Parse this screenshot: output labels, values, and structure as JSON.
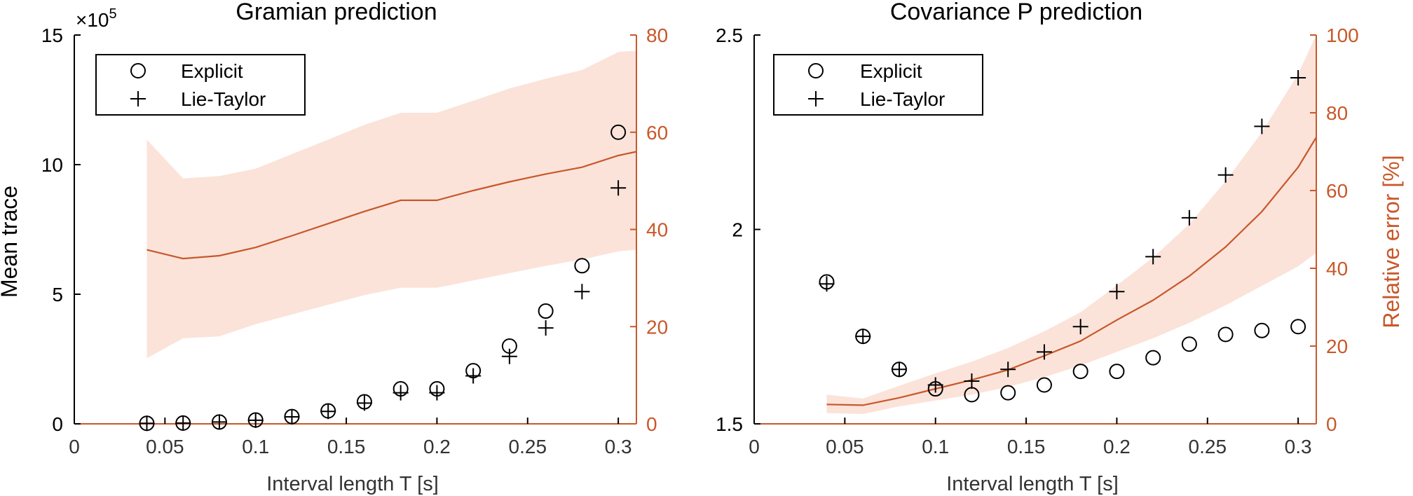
{
  "colors": {
    "left_axis": "#000000",
    "right_axis": "#c8582a",
    "band_fill": "#fbe3da",
    "markers": "#000000"
  },
  "chart_data": [
    {
      "type": "scatter",
      "title": "Gramian prediction",
      "xlabel": "Interval length T [s]",
      "ylabel": "Mean trace",
      "ylabel_right": "",
      "y_exponent": "×10",
      "y_exponent_power": "5",
      "xlim": [
        0,
        0.31
      ],
      "ylim": [
        0,
        15
      ],
      "ylim_right": [
        0,
        80
      ],
      "xticks": [
        0,
        0.05,
        0.1,
        0.15,
        0.2,
        0.25,
        0.3
      ],
      "xtick_labels": [
        "0",
        "0.05",
        "0.1",
        "0.15",
        "0.2",
        "0.25",
        "0.3"
      ],
      "yticks": [
        0,
        5,
        10,
        15
      ],
      "ytick_labels": [
        "0",
        "5",
        "10",
        "15"
      ],
      "yticks_right": [
        0,
        20,
        40,
        60,
        80
      ],
      "ytick_right_labels": [
        "0",
        "20",
        "40",
        "60",
        "80"
      ],
      "legend": {
        "placement": "top-left",
        "entries": [
          "Explicit",
          "Lie-Taylor"
        ]
      },
      "x": [
        0.04,
        0.06,
        0.08,
        0.1,
        0.12,
        0.14,
        0.16,
        0.18,
        0.2,
        0.22,
        0.24,
        0.26,
        0.28,
        0.3
      ],
      "series": [
        {
          "name": "Explicit",
          "marker": "circle",
          "axis": "left",
          "values": [
            0.02,
            0.03,
            0.07,
            0.15,
            0.28,
            0.5,
            0.85,
            1.35,
            1.35,
            2.05,
            3.0,
            4.35,
            6.1,
            11.25
          ]
        },
        {
          "name": "Lie-Taylor",
          "marker": "plus",
          "axis": "left",
          "values": [
            0.02,
            0.03,
            0.07,
            0.14,
            0.27,
            0.48,
            0.8,
            1.2,
            1.2,
            1.85,
            2.6,
            3.7,
            5.1,
            9.1
          ]
        }
      ],
      "relative_error": {
        "axis": "right",
        "x": [
          0.04,
          0.06,
          0.08,
          0.1,
          0.12,
          0.14,
          0.16,
          0.18,
          0.2,
          0.22,
          0.24,
          0.26,
          0.28,
          0.3,
          0.31
        ],
        "mean": [
          35.8,
          34.0,
          34.6,
          36.3,
          38.7,
          41.2,
          43.7,
          46.0,
          46.0,
          48.0,
          49.8,
          51.4,
          52.8,
          55.2,
          56.0
        ],
        "upper": [
          58.5,
          50.5,
          51.0,
          52.5,
          55.5,
          58.5,
          61.5,
          64.0,
          64.0,
          66.5,
          69.0,
          71.0,
          72.8,
          76.5,
          76.8
        ],
        "lower": [
          13.5,
          17.6,
          18.0,
          20.5,
          22.5,
          24.5,
          26.5,
          28.0,
          28.0,
          29.5,
          31.0,
          32.5,
          33.8,
          35.5,
          35.8
        ]
      }
    },
    {
      "type": "scatter",
      "title": "Covariance P prediction",
      "xlabel": "Interval length T [s]",
      "ylabel": "",
      "ylabel_right": "Relative error [%]",
      "y_exponent": "",
      "y_exponent_power": "",
      "xlim": [
        0,
        0.31
      ],
      "ylim": [
        1.5,
        2.5
      ],
      "ylim_right": [
        0,
        100
      ],
      "xticks": [
        0,
        0.05,
        0.1,
        0.15,
        0.2,
        0.25,
        0.3
      ],
      "xtick_labels": [
        "0",
        "0.05",
        "0.1",
        "0.15",
        "0.2",
        "0.25",
        "0.3"
      ],
      "yticks": [
        1.5,
        2,
        2.5
      ],
      "ytick_labels": [
        "1.5",
        "2",
        "2.5"
      ],
      "yticks_right": [
        0,
        20,
        40,
        60,
        80,
        100
      ],
      "ytick_right_labels": [
        "0",
        "20",
        "40",
        "60",
        "80",
        "100"
      ],
      "legend": {
        "placement": "top-left",
        "entries": [
          "Explicit",
          "Lie-Taylor"
        ]
      },
      "x": [
        0.04,
        0.06,
        0.08,
        0.1,
        0.12,
        0.14,
        0.16,
        0.18,
        0.2,
        0.22,
        0.24,
        0.26,
        0.28,
        0.3
      ],
      "series": [
        {
          "name": "Explicit",
          "marker": "circle",
          "axis": "left",
          "values": [
            1.865,
            1.725,
            1.64,
            1.59,
            1.575,
            1.58,
            1.6,
            1.635,
            1.635,
            1.67,
            1.705,
            1.73,
            1.74,
            1.75
          ]
        },
        {
          "name": "Lie-Taylor",
          "marker": "plus",
          "axis": "left",
          "values": [
            1.86,
            1.725,
            1.64,
            1.6,
            1.61,
            1.64,
            1.685,
            1.75,
            1.84,
            1.93,
            2.03,
            2.14,
            2.265,
            2.39
          ]
        }
      ],
      "relative_error": {
        "axis": "right",
        "x": [
          0.04,
          0.06,
          0.08,
          0.1,
          0.12,
          0.14,
          0.16,
          0.18,
          0.2,
          0.22,
          0.24,
          0.26,
          0.28,
          0.3,
          0.31
        ],
        "mean": [
          5.0,
          4.8,
          6.7,
          9.0,
          11.3,
          13.9,
          17.5,
          21.3,
          26.7,
          31.8,
          38.0,
          45.5,
          54.6,
          66.0,
          73.7
        ],
        "upper": [
          7.5,
          6.5,
          9.8,
          13.0,
          16.0,
          19.5,
          23.8,
          28.7,
          35.6,
          42.8,
          51.4,
          62.4,
          75.0,
          90.0,
          100.0
        ],
        "lower": [
          2.8,
          2.5,
          4.5,
          6.0,
          7.5,
          9.5,
          12.0,
          15.0,
          18.5,
          22.0,
          26.0,
          30.5,
          35.5,
          40.5,
          44.0
        ]
      }
    }
  ]
}
